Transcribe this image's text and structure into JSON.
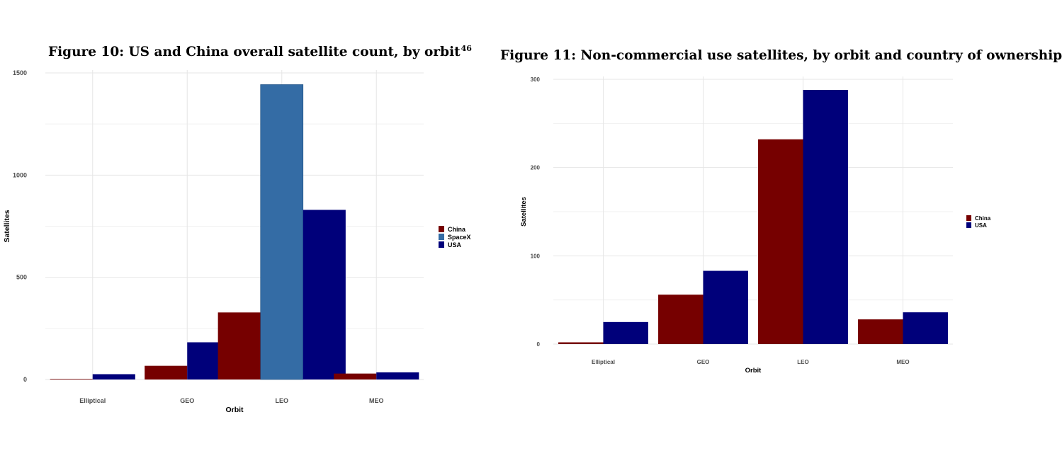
{
  "figures": {
    "fig10": {
      "title": "Figure 10: US and China overall satellite count, by orbit",
      "footnote": "46"
    },
    "fig11": {
      "title": "Figure 11: Non-commercial use satellites, by orbit and country of ownership"
    }
  },
  "colors": {
    "China": "#760000",
    "SpaceX": "#346ca5",
    "USA": "#00007a",
    "grid": "#e6e6e6"
  },
  "chart_data": [
    {
      "type": "bar",
      "title": "Figure 10: US and China overall satellite count, by orbit",
      "xlabel": "Orbit",
      "ylabel": "Satellites",
      "ylim": [
        0,
        1500
      ],
      "yticks": [
        0,
        500,
        1000,
        1500
      ],
      "categories": [
        "Elliptical",
        "GEO",
        "LEO",
        "MEO"
      ],
      "series": [
        {
          "name": "China",
          "values": [
            3,
            67,
            328,
            29
          ]
        },
        {
          "name": "SpaceX",
          "values": [
            null,
            null,
            1443,
            null
          ]
        },
        {
          "name": "USA",
          "values": [
            26,
            182,
            830,
            35
          ]
        }
      ],
      "legend": [
        "China",
        "SpaceX",
        "USA"
      ],
      "legend_position": "right",
      "grid": true
    },
    {
      "type": "bar",
      "title": "Figure 11: Non-commercial use satellites, by orbit and country of ownership",
      "xlabel": "Orbit",
      "ylabel": "Satellites",
      "ylim": [
        0,
        300
      ],
      "yticks": [
        0,
        100,
        200,
        300
      ],
      "categories": [
        "Elliptical",
        "GEO",
        "LEO",
        "MEO"
      ],
      "series": [
        {
          "name": "China",
          "values": [
            2,
            56,
            232,
            28
          ]
        },
        {
          "name": "USA",
          "values": [
            25,
            83,
            288,
            36
          ]
        }
      ],
      "legend": [
        "China",
        "USA"
      ],
      "legend_position": "right",
      "grid": true
    }
  ]
}
